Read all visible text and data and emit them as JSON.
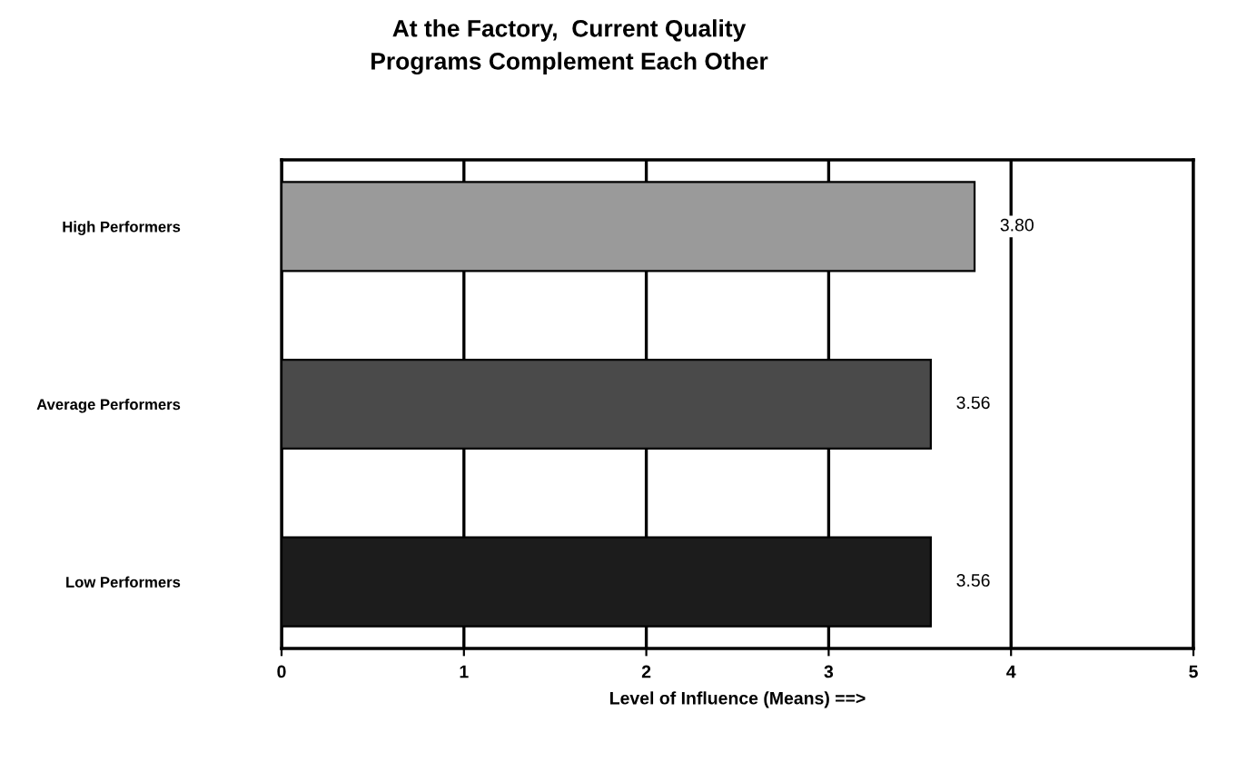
{
  "chart_data": {
    "type": "bar",
    "orientation": "horizontal",
    "title": "At the Factory,  Current Quality\nPrograms Complement Each Other",
    "xlabel": "Level of Influence (Means) ==>",
    "categories": [
      "High Performers",
      "Average Performers",
      "Low Performers"
    ],
    "values": [
      3.8,
      3.56,
      3.56
    ],
    "colors": [
      "#9a9a9a",
      "#4a4a4a",
      "#1c1c1c"
    ],
    "value_labels": [
      "3.80",
      "3.56",
      "3.56"
    ],
    "xlim": [
      0,
      5
    ],
    "xticks": [
      0,
      1,
      2,
      3,
      4,
      5
    ],
    "grid": "x"
  }
}
